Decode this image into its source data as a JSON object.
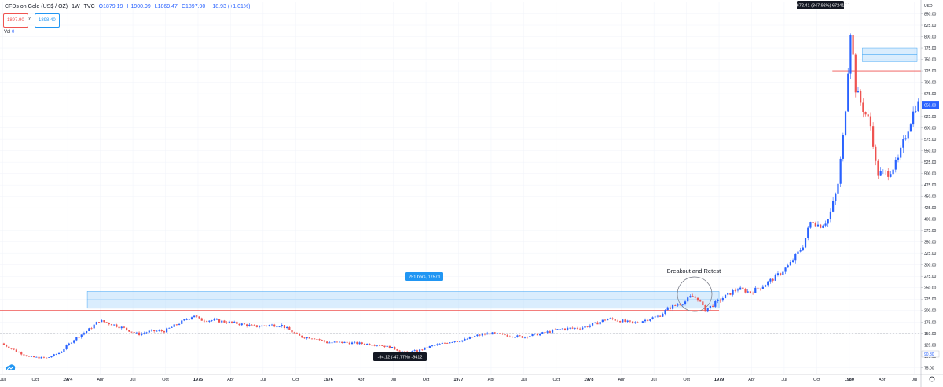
{
  "header": {
    "symbol": "CFDs on Gold (US$ / OZ)",
    "interval": "1W",
    "exchange": "TVC",
    "open": "O1879.19",
    "high": "H1900.99",
    "low": "L1869.47",
    "close": "C1897.90",
    "change": "+18.93 (+1.01%)",
    "sell_price": "1897.90",
    "to_label": "to",
    "buy_price": "1898.40",
    "vol_label": "Vol",
    "vol_value": "0"
  },
  "colors": {
    "up": "#2962ff",
    "down": "#ef5350",
    "range_fill": "#bbdefb",
    "range_border": "#2196f3",
    "level_line": "#ef5350",
    "label_bg": "#131722"
  },
  "annotations": {
    "breakout_text": "Breakout and Retest",
    "bars_label": "251 bars, 1757d",
    "measure_top": "672.41 (347.92%) 67241",
    "measure_bottom": "-94.12 (-47.77%) -9412",
    "current_price": "650.00",
    "scale_tag": "90.30"
  },
  "chart_data": {
    "type": "candlestick",
    "title": "CFDs on Gold (US$ / OZ)",
    "y_axis": {
      "unit": "USD",
      "range": [
        60,
        875
      ],
      "ticks": [
        "75.00",
        "100.00",
        "125.00",
        "150.00",
        "175.00",
        "200.00",
        "225.00",
        "250.00",
        "275.00",
        "300.00",
        "325.00",
        "350.00",
        "375.00",
        "400.00",
        "425.00",
        "450.00",
        "475.00",
        "500.00",
        "525.00",
        "550.00",
        "575.00",
        "600.00",
        "625.00",
        "650.00",
        "675.00",
        "700.00",
        "725.00",
        "750.00",
        "775.00",
        "800.00",
        "825.00",
        "850.00"
      ]
    },
    "x_axis": {
      "ticks": [
        {
          "label": "Jul",
          "t": 1973.5,
          "year": false
        },
        {
          "label": "Oct",
          "t": 1973.75,
          "year": false
        },
        {
          "label": "1974",
          "t": 1974.0,
          "year": true
        },
        {
          "label": "Apr",
          "t": 1974.25,
          "year": false
        },
        {
          "label": "Jul",
          "t": 1974.5,
          "year": false
        },
        {
          "label": "Oct",
          "t": 1974.75,
          "year": false
        },
        {
          "label": "1975",
          "t": 1975.0,
          "year": true
        },
        {
          "label": "Apr",
          "t": 1975.25,
          "year": false
        },
        {
          "label": "Jul",
          "t": 1975.5,
          "year": false
        },
        {
          "label": "Oct",
          "t": 1975.75,
          "year": false
        },
        {
          "label": "1976",
          "t": 1976.0,
          "year": true
        },
        {
          "label": "Apr",
          "t": 1976.25,
          "year": false
        },
        {
          "label": "Jul",
          "t": 1976.5,
          "year": false
        },
        {
          "label": "Oct",
          "t": 1976.75,
          "year": false
        },
        {
          "label": "1977",
          "t": 1977.0,
          "year": true
        },
        {
          "label": "Apr",
          "t": 1977.25,
          "year": false
        },
        {
          "label": "Jul",
          "t": 1977.5,
          "year": false
        },
        {
          "label": "Oct",
          "t": 1977.75,
          "year": false
        },
        {
          "label": "1978",
          "t": 1978.0,
          "year": true
        },
        {
          "label": "Apr",
          "t": 1978.25,
          "year": false
        },
        {
          "label": "Jul",
          "t": 1978.5,
          "year": false
        },
        {
          "label": "Oct",
          "t": 1978.75,
          "year": false
        },
        {
          "label": "1979",
          "t": 1979.0,
          "year": true
        },
        {
          "label": "Apr",
          "t": 1979.25,
          "year": false
        },
        {
          "label": "Jul",
          "t": 1979.5,
          "year": false
        },
        {
          "label": "Oct",
          "t": 1979.75,
          "year": false
        },
        {
          "label": "1980",
          "t": 1980.0,
          "year": true
        },
        {
          "label": "Apr",
          "t": 1980.25,
          "year": false
        },
        {
          "label": "Jul",
          "t": 1980.5,
          "year": false
        }
      ]
    },
    "price_path": [
      [
        1973.5,
        128
      ],
      [
        1973.62,
        110
      ],
      [
        1973.72,
        98
      ],
      [
        1973.85,
        96
      ],
      [
        1973.95,
        108
      ],
      [
        1974.05,
        135
      ],
      [
        1974.18,
        160
      ],
      [
        1974.25,
        178
      ],
      [
        1974.35,
        170
      ],
      [
        1974.45,
        160
      ],
      [
        1974.55,
        148
      ],
      [
        1974.65,
        155
      ],
      [
        1974.75,
        155
      ],
      [
        1974.85,
        170
      ],
      [
        1974.98,
        190
      ],
      [
        1975.02,
        180
      ],
      [
        1975.15,
        178
      ],
      [
        1975.3,
        172
      ],
      [
        1975.45,
        165
      ],
      [
        1975.55,
        168
      ],
      [
        1975.65,
        168
      ],
      [
        1975.75,
        150
      ],
      [
        1975.8,
        142
      ],
      [
        1975.9,
        140
      ],
      [
        1976.0,
        130
      ],
      [
        1976.12,
        130
      ],
      [
        1976.25,
        128
      ],
      [
        1976.4,
        125
      ],
      [
        1976.5,
        118
      ],
      [
        1976.6,
        108
      ],
      [
        1976.7,
        112
      ],
      [
        1976.8,
        122
      ],
      [
        1976.95,
        132
      ],
      [
        1977.05,
        135
      ],
      [
        1977.15,
        145
      ],
      [
        1977.25,
        150
      ],
      [
        1977.4,
        145
      ],
      [
        1977.5,
        142
      ],
      [
        1977.65,
        150
      ],
      [
        1977.8,
        160
      ],
      [
        1977.95,
        162
      ],
      [
        1978.05,
        170
      ],
      [
        1978.15,
        182
      ],
      [
        1978.25,
        178
      ],
      [
        1978.35,
        172
      ],
      [
        1978.45,
        180
      ],
      [
        1978.55,
        188
      ],
      [
        1978.62,
        205
      ],
      [
        1978.68,
        212
      ],
      [
        1978.75,
        220
      ],
      [
        1978.8,
        232
      ],
      [
        1978.85,
        225
      ],
      [
        1978.9,
        200
      ],
      [
        1978.95,
        210
      ],
      [
        1979.05,
        230
      ],
      [
        1979.15,
        248
      ],
      [
        1979.25,
        240
      ],
      [
        1979.35,
        255
      ],
      [
        1979.45,
        275
      ],
      [
        1979.55,
        300
      ],
      [
        1979.65,
        340
      ],
      [
        1979.72,
        400
      ],
      [
        1979.78,
        385
      ],
      [
        1979.85,
        400
      ],
      [
        1979.92,
        470
      ],
      [
        1979.97,
        600
      ],
      [
        1980.02,
        820
      ],
      [
        1980.06,
        680
      ],
      [
        1980.12,
        640
      ],
      [
        1980.18,
        600
      ],
      [
        1980.22,
        500
      ],
      [
        1980.3,
        500
      ],
      [
        1980.38,
        525
      ],
      [
        1980.46,
        600
      ],
      [
        1980.52,
        650
      ]
    ],
    "annotations": {
      "resistance_level": 200,
      "range_box": {
        "t_start": 1974.15,
        "t_end": 1979.0,
        "price_low": 205,
        "price_high": 242
      },
      "upper_level": 725,
      "upper_box": {
        "t_start": 1980.1,
        "t_end": 1980.52,
        "price_low": 745,
        "price_high": 775
      },
      "dotted_level": 150,
      "last_price": 650
    }
  }
}
